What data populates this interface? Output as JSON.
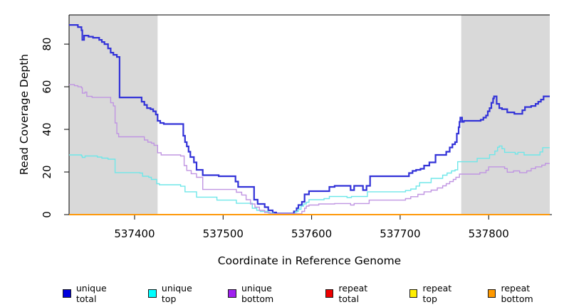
{
  "legend": {
    "items": [
      {
        "label": "unique total",
        "color": "#0000dd"
      },
      {
        "label": "unique top",
        "color": "#00ffff"
      },
      {
        "label": "unique bottom",
        "color": "#a020f0"
      },
      {
        "label": "repeat total",
        "color": "#ee0000"
      },
      {
        "label": "repeat top",
        "color": "#ffee00"
      },
      {
        "label": "repeat bottom",
        "color": "#ff9900"
      }
    ]
  },
  "chart_data": {
    "type": "line",
    "step": true,
    "title": "",
    "xlabel": "Coordinate in Reference Genome",
    "ylabel": "Read Coverage Depth",
    "x_range": [
      537326,
      537869
    ],
    "y_range": [
      0,
      93.7
    ],
    "x_ticks": [
      537400,
      537500,
      537600,
      537700,
      537800
    ],
    "y_ticks": [
      0,
      20,
      40,
      60,
      80
    ],
    "grid": false,
    "legend_position": "bottom",
    "shaded_regions": [
      {
        "x0": 537326,
        "x1": 537426,
        "color": "#d9d9d9"
      },
      {
        "x0": 537769,
        "x1": 537869,
        "color": "#d9d9d9"
      }
    ],
    "series": [
      {
        "name": "unique total",
        "color": "#3232d8",
        "width": 2.2,
        "points": [
          [
            537326,
            89
          ],
          [
            537336,
            88
          ],
          [
            537340,
            86.5
          ],
          [
            537341,
            82
          ],
          [
            537343,
            84
          ],
          [
            537348,
            83.5
          ],
          [
            537353,
            83
          ],
          [
            537360,
            82
          ],
          [
            537363,
            81
          ],
          [
            537366,
            80
          ],
          [
            537370,
            78
          ],
          [
            537373,
            76
          ],
          [
            537376,
            75
          ],
          [
            537380,
            74
          ],
          [
            537383,
            55
          ],
          [
            537406,
            55
          ],
          [
            537408,
            53
          ],
          [
            537411,
            51.5
          ],
          [
            537414,
            50
          ],
          [
            537418,
            49.5
          ],
          [
            537421,
            48.5
          ],
          [
            537424,
            47
          ],
          [
            537426,
            44
          ],
          [
            537429,
            43
          ],
          [
            537433,
            42.5
          ],
          [
            537455,
            37
          ],
          [
            537457,
            34
          ],
          [
            537459,
            32
          ],
          [
            537461,
            29.5
          ],
          [
            537463,
            27
          ],
          [
            537467,
            24.5
          ],
          [
            537470,
            21
          ],
          [
            537477,
            18.5
          ],
          [
            537495,
            18
          ],
          [
            537514,
            15.5
          ],
          [
            537517,
            13
          ],
          [
            537535,
            7
          ],
          [
            537539,
            5
          ],
          [
            537547,
            3.5
          ],
          [
            537551,
            2
          ],
          [
            537556,
            1
          ],
          [
            537560,
            0.5
          ],
          [
            537580,
            1.5
          ],
          [
            537583,
            3
          ],
          [
            537585,
            4.5
          ],
          [
            537589,
            6
          ],
          [
            537592,
            9.5
          ],
          [
            537597,
            11
          ],
          [
            537620,
            13
          ],
          [
            537626,
            13.5
          ],
          [
            537644,
            11.5
          ],
          [
            537648,
            13.5
          ],
          [
            537658,
            11.5
          ],
          [
            537662,
            13.5
          ],
          [
            537666,
            18
          ],
          [
            537710,
            19.5
          ],
          [
            537714,
            20.5
          ],
          [
            537718,
            21
          ],
          [
            537723,
            21.5
          ],
          [
            537727,
            23
          ],
          [
            537733,
            24.5
          ],
          [
            537740,
            28
          ],
          [
            537752,
            29.5
          ],
          [
            537756,
            31.5
          ],
          [
            537759,
            33
          ],
          [
            537762,
            34
          ],
          [
            537764,
            38
          ],
          [
            537766,
            41
          ],
          [
            537767,
            43.5
          ],
          [
            537768,
            45.5
          ],
          [
            537770,
            43.5
          ],
          [
            537772,
            44
          ],
          [
            537791,
            44.5
          ],
          [
            537794,
            45.5
          ],
          [
            537797,
            46.5
          ],
          [
            537799,
            48.5
          ],
          [
            537801,
            50
          ],
          [
            537803,
            52.5
          ],
          [
            537805,
            54.5
          ],
          [
            537806,
            55.5
          ],
          [
            537809,
            52
          ],
          [
            537812,
            50
          ],
          [
            537815,
            49.5
          ],
          [
            537821,
            48
          ],
          [
            537829,
            47.3
          ],
          [
            537838,
            49
          ],
          [
            537841,
            50.5
          ],
          [
            537848,
            51
          ],
          [
            537853,
            52
          ],
          [
            537856,
            53
          ],
          [
            537859,
            54
          ],
          [
            537862,
            55.5
          ],
          [
            537869,
            55.5
          ]
        ]
      },
      {
        "name": "unique top",
        "color": "#6fe7e9",
        "width": 1.4,
        "points": [
          [
            537326,
            28
          ],
          [
            537340,
            27.5
          ],
          [
            537341,
            26.8
          ],
          [
            537344,
            27.5
          ],
          [
            537358,
            27
          ],
          [
            537363,
            26.5
          ],
          [
            537370,
            26
          ],
          [
            537378,
            19.7
          ],
          [
            537406,
            19.5
          ],
          [
            537409,
            18
          ],
          [
            537416,
            17.5
          ],
          [
            537419,
            16.5
          ],
          [
            537425,
            14.5
          ],
          [
            537428,
            14
          ],
          [
            537452,
            13.3
          ],
          [
            537457,
            10.7
          ],
          [
            537470,
            8.2
          ],
          [
            537493,
            6.8
          ],
          [
            537515,
            5.3
          ],
          [
            537533,
            3
          ],
          [
            537538,
            2
          ],
          [
            537542,
            1.5
          ],
          [
            537551,
            0.7
          ],
          [
            537557,
            0.3
          ],
          [
            537582,
            1.5
          ],
          [
            537585,
            2.5
          ],
          [
            537588,
            4
          ],
          [
            537591,
            5
          ],
          [
            537594,
            5.8
          ],
          [
            537597,
            7
          ],
          [
            537614,
            7.5
          ],
          [
            537620,
            8.5
          ],
          [
            537640,
            8
          ],
          [
            537645,
            8.5
          ],
          [
            537663,
            10.7
          ],
          [
            537706,
            11.3
          ],
          [
            537712,
            12
          ],
          [
            537718,
            13.4
          ],
          [
            537722,
            15
          ],
          [
            537735,
            17
          ],
          [
            537748,
            18.5
          ],
          [
            537753,
            19.5
          ],
          [
            537758,
            20.5
          ],
          [
            537762,
            21
          ],
          [
            537765,
            24.8
          ],
          [
            537787,
            26.4
          ],
          [
            537801,
            28.1
          ],
          [
            537807,
            29.8
          ],
          [
            537810,
            31.6
          ],
          [
            537812,
            32.2
          ],
          [
            537815,
            30.9
          ],
          [
            537818,
            29.2
          ],
          [
            537830,
            28.4
          ],
          [
            537833,
            29.2
          ],
          [
            537840,
            28
          ],
          [
            537858,
            29.4
          ],
          [
            537861,
            31.4
          ],
          [
            537869,
            31.4
          ]
        ]
      },
      {
        "name": "unique bottom",
        "color": "#c095e2",
        "width": 1.4,
        "points": [
          [
            537326,
            61
          ],
          [
            537332,
            60.5
          ],
          [
            537336,
            60
          ],
          [
            537340,
            59.5
          ],
          [
            537341,
            57
          ],
          [
            537344,
            57.5
          ],
          [
            537346,
            55.5
          ],
          [
            537352,
            55
          ],
          [
            537373,
            52.5
          ],
          [
            537376,
            51
          ],
          [
            537378,
            43
          ],
          [
            537380,
            38
          ],
          [
            537382,
            36.5
          ],
          [
            537411,
            35
          ],
          [
            537415,
            34
          ],
          [
            537419,
            33.5
          ],
          [
            537422,
            32.5
          ],
          [
            537426,
            29
          ],
          [
            537430,
            28
          ],
          [
            537452,
            27.5
          ],
          [
            537456,
            23
          ],
          [
            537459,
            20.7
          ],
          [
            537464,
            19.2
          ],
          [
            537470,
            17.5
          ],
          [
            537477,
            11.8
          ],
          [
            537515,
            10.5
          ],
          [
            537521,
            9.2
          ],
          [
            537526,
            7
          ],
          [
            537531,
            5
          ],
          [
            537536,
            3.5
          ],
          [
            537541,
            2
          ],
          [
            537547,
            1
          ],
          [
            537553,
            0.4
          ],
          [
            537589,
            1.5
          ],
          [
            537592,
            3
          ],
          [
            537594,
            4
          ],
          [
            537597,
            4.5
          ],
          [
            537608,
            5
          ],
          [
            537626,
            5.2
          ],
          [
            537644,
            4.5
          ],
          [
            537648,
            5.2
          ],
          [
            537665,
            6.8
          ],
          [
            537706,
            7.5
          ],
          [
            537712,
            8.4
          ],
          [
            537720,
            9.5
          ],
          [
            537727,
            10.7
          ],
          [
            537735,
            11.5
          ],
          [
            537742,
            12.5
          ],
          [
            537748,
            13.5
          ],
          [
            537752,
            14.5
          ],
          [
            537756,
            15.5
          ],
          [
            537760,
            16.5
          ],
          [
            537763,
            17.5
          ],
          [
            537767,
            19
          ],
          [
            537790,
            19.7
          ],
          [
            537797,
            20.8
          ],
          [
            537800,
            22.4
          ],
          [
            537818,
            21.6
          ],
          [
            537821,
            19.9
          ],
          [
            537828,
            20.5
          ],
          [
            537835,
            19.7
          ],
          [
            537843,
            20.5
          ],
          [
            537848,
            21.6
          ],
          [
            537853,
            22.4
          ],
          [
            537860,
            23.2
          ],
          [
            537864,
            24
          ],
          [
            537869,
            24
          ]
        ]
      },
      {
        "name": "repeat total",
        "color": "#dd0000",
        "width": 1.4,
        "points": [
          [
            537326,
            0
          ],
          [
            537869,
            0
          ]
        ]
      },
      {
        "name": "repeat top",
        "color": "#ffee00",
        "width": 1.4,
        "points": [
          [
            537326,
            0
          ],
          [
            537869,
            0
          ]
        ]
      },
      {
        "name": "repeat bottom",
        "color": "#ff9400",
        "width": 1.8,
        "points": [
          [
            537326,
            0
          ],
          [
            537869,
            0
          ]
        ]
      }
    ]
  }
}
